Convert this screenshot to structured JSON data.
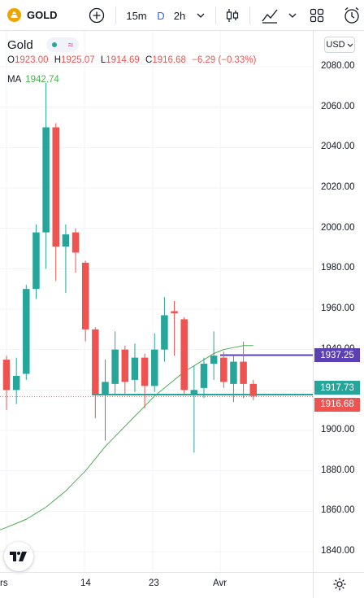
{
  "header": {
    "symbol": "GOLD",
    "interval_15m": "15m",
    "interval_d": "D",
    "interval_2h": "2h"
  },
  "legend": {
    "title": "Gold",
    "o_label": "O",
    "o_value": "1923.00",
    "h_label": "H",
    "h_value": "1925.07",
    "l_label": "L",
    "l_value": "1914.69",
    "c_label": "C",
    "c_value": "1916.68",
    "change": "−6.29 (−0.33%)",
    "ma_label": "MA",
    "ma_value": "1942.74"
  },
  "currency": "USD",
  "y_axis": [
    "2080.00",
    "2060.00",
    "2040.00",
    "2020.00",
    "2000.00",
    "1980.00",
    "1960.00",
    "1940.00",
    "1920.00",
    "1900.00",
    "1880.00",
    "1860.00",
    "1840.00"
  ],
  "x_axis": [
    "rs",
    "14",
    "23",
    "Avr"
  ],
  "price_tags": {
    "line": "1937.25",
    "green": "1917.73",
    "current": "1916.68"
  },
  "colors": {
    "up": "#26a69a",
    "down": "#ef5350",
    "ma": "#4caf50",
    "hline": "#5b3fb5",
    "accent": "#2962ff"
  },
  "chart_data": {
    "type": "candlestick",
    "ylim": [
      1834,
      2092
    ],
    "candles": [
      {
        "o": 1935,
        "h": 1937,
        "l": 1910,
        "c": 1920
      },
      {
        "o": 1920,
        "h": 1936,
        "l": 1913,
        "c": 1927
      },
      {
        "o": 1928,
        "h": 1972,
        "l": 1925,
        "c": 1970
      },
      {
        "o": 1970,
        "h": 2002,
        "l": 1965,
        "c": 1998
      },
      {
        "o": 1998,
        "h": 2072,
        "l": 1980,
        "c": 2050
      },
      {
        "o": 2050,
        "h": 2052,
        "l": 1974,
        "c": 1991
      },
      {
        "o": 1991,
        "h": 2002,
        "l": 1968,
        "c": 1997
      },
      {
        "o": 1998,
        "h": 2000,
        "l": 1978,
        "c": 1988
      },
      {
        "o": 1983,
        "h": 1984,
        "l": 1944,
        "c": 1950
      },
      {
        "o": 1950,
        "h": 1951,
        "l": 1906,
        "c": 1918
      },
      {
        "o": 1918,
        "h": 1935,
        "l": 1895,
        "c": 1924
      },
      {
        "o": 1923,
        "h": 1949,
        "l": 1918,
        "c": 1940
      },
      {
        "o": 1940,
        "h": 1942,
        "l": 1918,
        "c": 1924
      },
      {
        "o": 1925,
        "h": 1943,
        "l": 1919,
        "c": 1936
      },
      {
        "o": 1936,
        "h": 1938,
        "l": 1911,
        "c": 1922
      },
      {
        "o": 1922,
        "h": 1948,
        "l": 1919,
        "c": 1940
      },
      {
        "o": 1940,
        "h": 1966,
        "l": 1934,
        "c": 1957
      },
      {
        "o": 1959,
        "h": 1964,
        "l": 1937,
        "c": 1958
      },
      {
        "o": 1955,
        "h": 1956,
        "l": 1918,
        "c": 1920
      },
      {
        "o": 1918,
        "h": 1932,
        "l": 1889,
        "c": 1920
      },
      {
        "o": 1921,
        "h": 1936,
        "l": 1916,
        "c": 1933
      },
      {
        "o": 1933,
        "h": 1949,
        "l": 1925,
        "c": 1937
      },
      {
        "o": 1936,
        "h": 1939,
        "l": 1921,
        "c": 1924
      },
      {
        "o": 1923,
        "h": 1937,
        "l": 1914,
        "c": 1934
      },
      {
        "o": 1934,
        "h": 1944,
        "l": 1916,
        "c": 1923
      },
      {
        "o": 1923,
        "h": 1925,
        "l": 1915,
        "c": 1917
      }
    ],
    "ma": [
      1852,
      1854,
      1856,
      1859,
      1862,
      1866,
      1870,
      1875,
      1880,
      1886,
      1892,
      1897,
      1902,
      1907,
      1912,
      1917,
      1921,
      1925,
      1929,
      1932,
      1935,
      1938,
      1940,
      1941,
      1942,
      1942
    ]
  }
}
